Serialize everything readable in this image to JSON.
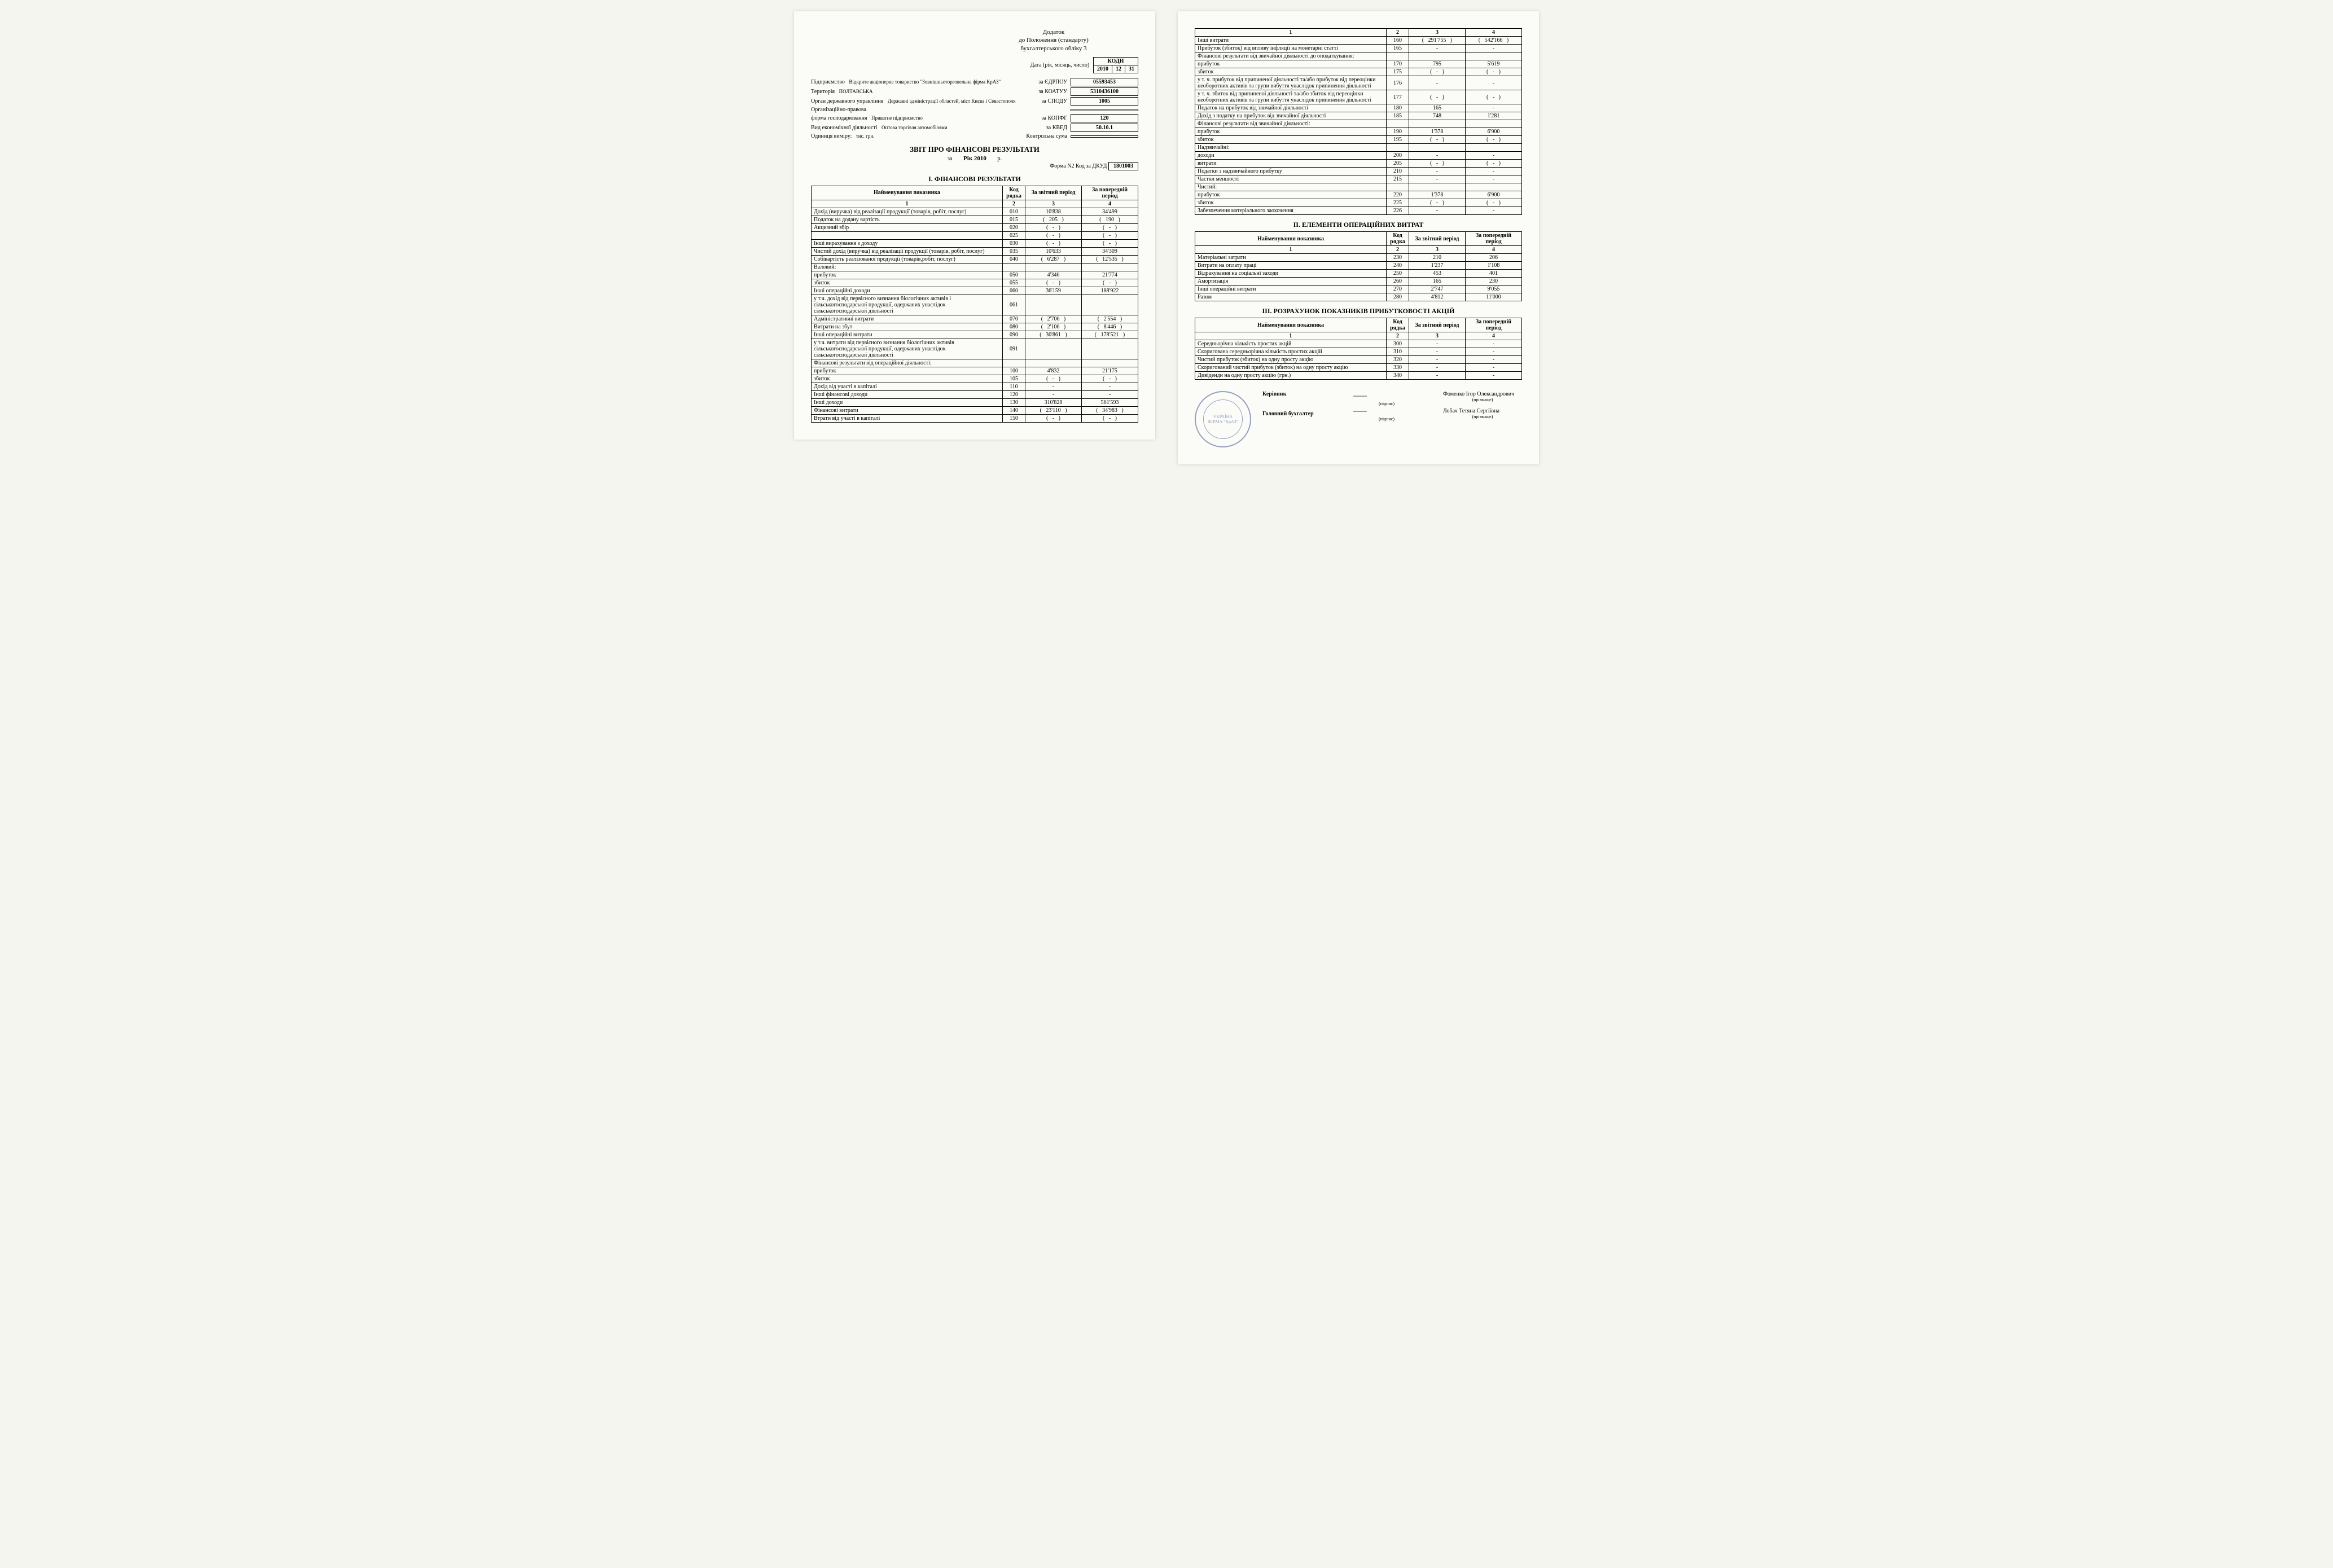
{
  "appendix": {
    "line1": "Додаток",
    "line2": "до Положення (стандарту)",
    "line3": "бухгалтерського обліку 3"
  },
  "date_label": "Дата (рік, місяць, число)",
  "codes_header": "КОДИ",
  "date": {
    "year": "2010",
    "month": "12",
    "day": "31"
  },
  "info": [
    {
      "label": "Підприємство",
      "sub": "Відкрите акціонерне товариство \"Зовнішньоторговельна фірма КрАЗ\"",
      "code_label": "за ЄДРПОУ",
      "code": "05593453"
    },
    {
      "label": "Територія",
      "sub": "ПОЛТАВСЬКА",
      "code_label": "за КОАТУУ",
      "code": "5310436100"
    },
    {
      "label": "Орган державного управління",
      "sub": "Державні адміністрації областей, міст Києва і Севастополя",
      "code_label": "за СПОДУ",
      "code": "1005"
    },
    {
      "label": "Організаційно-правова",
      "sub": "",
      "code_label": "",
      "code": ""
    },
    {
      "label": "форма господарювання",
      "sub": "Приватне підприємство",
      "code_label": "за КОПФГ",
      "code": "120"
    },
    {
      "label": "Вид економічної діяльності",
      "sub": "Оптова торгівля автомобілями",
      "code_label": "за КВЕД",
      "code": "50.10.1"
    },
    {
      "label": "Одиниця виміру:",
      "sub": "тис. грн.",
      "code_label": "Контрольна сума",
      "code": ""
    }
  ],
  "title": "ЗВІТ ПРО ФІНАНСОВІ РЕЗУЛЬТАТИ",
  "period_prefix": "за",
  "period": "Рік 2010",
  "period_suffix": "р.",
  "form_label": "Форма N2  Код за ДКУД",
  "form_code": "1801003",
  "sections": {
    "s1": "І. ФІНАНСОВІ РЕЗУЛЬТАТИ",
    "s2": "ІІ. ЕЛЕМЕНТИ ОПЕРАЦІЙНИХ ВИТРАТ",
    "s3": "ІІІ. РОЗРАХУНОК ПОКАЗНИКІВ ПРИБУТКОВОСТІ АКЦІЙ"
  },
  "columns": {
    "name": "Найменування показника",
    "code": "Код рядка",
    "cur": "За звітний період",
    "prev": "За попередній період",
    "h1": "1",
    "h2": "2",
    "h3": "3",
    "h4": "4"
  },
  "table1a": [
    {
      "n": "Дохід (виручка) від реалізації продукції (товарів, робіт, послуг)",
      "c": "010",
      "a": "10'838",
      "b": "34'499"
    },
    {
      "n": "Податок на додану вартість",
      "c": "015",
      "a": "205",
      "b": "190",
      "pa": true,
      "pb": true
    },
    {
      "n": "Акцизний збір",
      "c": "020",
      "a": "-",
      "b": "-",
      "pa": true,
      "pb": true
    },
    {
      "n": "",
      "c": "025",
      "a": "-",
      "b": "-",
      "pa": true,
      "pb": true
    },
    {
      "n": "Інші вирахування з доходу",
      "c": "030",
      "a": "-",
      "b": "-",
      "pa": true,
      "pb": true
    },
    {
      "n": "Чистий дохід (виручка) від реалізації продукції (товарів, робіт, послуг)",
      "c": "035",
      "a": "10'633",
      "b": "34'309"
    },
    {
      "n": "Собівартість реалізованої продукції (товарів,робіт, послуг)",
      "c": "040",
      "a": "6'287",
      "b": "12'535",
      "pa": true,
      "pb": true
    },
    {
      "n": "Валовий:",
      "c": "",
      "a": "",
      "b": "",
      "nr": true
    },
    {
      "n": "прибуток",
      "c": "050",
      "a": "4'346",
      "b": "21'774",
      "ind": 1
    },
    {
      "n": "збиток",
      "c": "055",
      "a": "-",
      "b": "-",
      "pa": true,
      "pb": true,
      "ind": 1
    },
    {
      "n": "Інші операційні доходи",
      "c": "060",
      "a": "36'159",
      "b": "188'922"
    },
    {
      "n": "у т.ч. дохід від первісного визнання біологічних активів і сільськогосподарської продукції, одержаних унаслідок сільськогосподарської діяльності",
      "c": "061",
      "a": "",
      "b": "",
      "ind": 1
    },
    {
      "n": "Адміністративні витрати",
      "c": "070",
      "a": "2'706",
      "b": "2'554",
      "pa": true,
      "pb": true
    },
    {
      "n": "Витрати на збут",
      "c": "080",
      "a": "2'106",
      "b": "8'446",
      "pa": true,
      "pb": true
    },
    {
      "n": "Інші операційні витрати",
      "c": "090",
      "a": "30'861",
      "b": "178'521",
      "pa": true,
      "pb": true
    },
    {
      "n": "у т.ч. витрати від первісного визнання біологічних активів сільськогосподарської продукції, одержаних унаслідок сільськогосподарської діяльності",
      "c": "091",
      "a": "",
      "b": "",
      "ind": 1
    },
    {
      "n": "Фінансові результати від операційної діяльності:",
      "c": "",
      "a": "",
      "b": "",
      "nr": true
    },
    {
      "n": "прибуток",
      "c": "100",
      "a": "4'832",
      "b": "21'175",
      "ind": 1
    },
    {
      "n": "збиток",
      "c": "105",
      "a": "-",
      "b": "-",
      "pa": true,
      "pb": true,
      "ind": 1
    },
    {
      "n": "Дохід від участі в капіталі",
      "c": "110",
      "a": "-",
      "b": "-"
    },
    {
      "n": "Інші фінансові доходи",
      "c": "120",
      "a": "-",
      "b": "-"
    },
    {
      "n": "Інші доходи",
      "c": "130",
      "a": "310'828",
      "b": "561'593"
    },
    {
      "n": "Фінансові витрати",
      "c": "140",
      "a": "23'110",
      "b": "34'983",
      "pa": true,
      "pb": true
    },
    {
      "n": "Втрати від участі в капіталі",
      "c": "150",
      "a": "-",
      "b": "-",
      "pa": true,
      "pb": true
    }
  ],
  "table1b": [
    {
      "n": "Інші витрати",
      "c": "160",
      "a": "291'755",
      "b": "542'166",
      "pa": true,
      "pb": true
    },
    {
      "n": "Прибуток (збиток) від впливу інфляції на монетарні статті",
      "c": "165",
      "a": "-",
      "b": "-"
    },
    {
      "n": "Фінансові результати від звичайної діяльності до оподаткування:",
      "c": "",
      "a": "",
      "b": "",
      "nr": true
    },
    {
      "n": "прибуток",
      "c": "170",
      "a": "795",
      "b": "5'619",
      "ind": 1
    },
    {
      "n": "збиток",
      "c": "175",
      "a": "-",
      "b": "-",
      "pa": true,
      "pb": true,
      "ind": 1
    },
    {
      "n": "у т. ч. прибуток від припиненої діяльності та/або прибуток від переоцінки необоротних  активів та групи вибуття унаслідок припинення діяльності",
      "c": "176",
      "a": "-",
      "b": "-",
      "ind": 1
    },
    {
      "n": "у т. ч. збиток від припиненої діяльності та/або збиток від переоцінки необоротних активів та групи вибуття унаслідок припинення діяльності",
      "c": "177",
      "a": "-",
      "b": "-",
      "pa": true,
      "pb": true,
      "ind": 1
    },
    {
      "n": "Податок на прибуток від звичайної діяльності",
      "c": "180",
      "a": "165",
      "b": "-"
    },
    {
      "n": "Дохід з податку на прибуток від звичайної діяльності",
      "c": "185",
      "a": "748",
      "b": "1'281"
    },
    {
      "n": "Фінансові результати від звичайної діяльності:",
      "c": "",
      "a": "",
      "b": "",
      "nr": true
    },
    {
      "n": "прибуток",
      "c": "190",
      "a": "1'378",
      "b": "6'900",
      "ind": 1
    },
    {
      "n": "збиток",
      "c": "195",
      "a": "-",
      "b": "-",
      "pa": true,
      "pb": true,
      "ind": 1
    },
    {
      "n": "Надзвичайні:",
      "c": "",
      "a": "",
      "b": "",
      "nr": true
    },
    {
      "n": "доходи",
      "c": "200",
      "a": "-",
      "b": "-",
      "ind": 1
    },
    {
      "n": "витрати",
      "c": "205",
      "a": "-",
      "b": "-",
      "pa": true,
      "pb": true,
      "ind": 1
    },
    {
      "n": "Податки з надзвичайного прибутку",
      "c": "210",
      "a": "-",
      "b": "-"
    },
    {
      "n": "Частки меншості",
      "c": "215",
      "a": "-",
      "b": "-"
    },
    {
      "n": "Чистий:",
      "c": "",
      "a": "",
      "b": "",
      "nr": true
    },
    {
      "n": "прибуток",
      "c": "220",
      "a": "1'378",
      "b": "6'900",
      "ind": 1
    },
    {
      "n": "збиток",
      "c": "225",
      "a": "-",
      "b": "-",
      "pa": true,
      "pb": true,
      "ind": 1
    },
    {
      "n": "Забезпечення матеріального заохочення",
      "c": "226",
      "a": "-",
      "b": "-"
    }
  ],
  "table2": [
    {
      "n": "Матеріальні затрати",
      "c": "230",
      "a": "210",
      "b": "206"
    },
    {
      "n": "Витрати на оплату праці",
      "c": "240",
      "a": "1'237",
      "b": "1'108"
    },
    {
      "n": "Відрахування на соціальні заходи",
      "c": "250",
      "a": "453",
      "b": "401"
    },
    {
      "n": "Амортизація",
      "c": "260",
      "a": "165",
      "b": "230"
    },
    {
      "n": "Інші операційні витрати",
      "c": "270",
      "a": "2'747",
      "b": "9'055"
    },
    {
      "n": "Разом",
      "c": "280",
      "a": "4'812",
      "b": "11'000"
    }
  ],
  "table3": [
    {
      "n": "Середньорічна кількість простих акцій",
      "c": "300",
      "a": "-",
      "b": "-"
    },
    {
      "n": "Скоригована середньорічна кількість простих акцій",
      "c": "310",
      "a": "-",
      "b": "-"
    },
    {
      "n": "Чистий прибуток (збиток) на одну просту акцію",
      "c": "320",
      "a": "-",
      "b": "-"
    },
    {
      "n": "Скоригований чистий прибуток (збиток) на одну просту акцію",
      "c": "330",
      "a": "-",
      "b": "-"
    },
    {
      "n": "Дивіденди на одну просту акцію (грн.)",
      "c": "340",
      "a": "-",
      "b": "-"
    }
  ],
  "signatures": {
    "stamp_country": "УКРАЇНА",
    "stamp_firm": "ФІРМА \"КрАЗ\"",
    "role1": "Керівник",
    "role2": "Головний бухгалтер",
    "name1": "Фоменко Ігор Олександрович",
    "name2": "Лобач Тетяна Сергіївна",
    "sig_label": "(підпис)",
    "name_label": "(прізвище)"
  }
}
